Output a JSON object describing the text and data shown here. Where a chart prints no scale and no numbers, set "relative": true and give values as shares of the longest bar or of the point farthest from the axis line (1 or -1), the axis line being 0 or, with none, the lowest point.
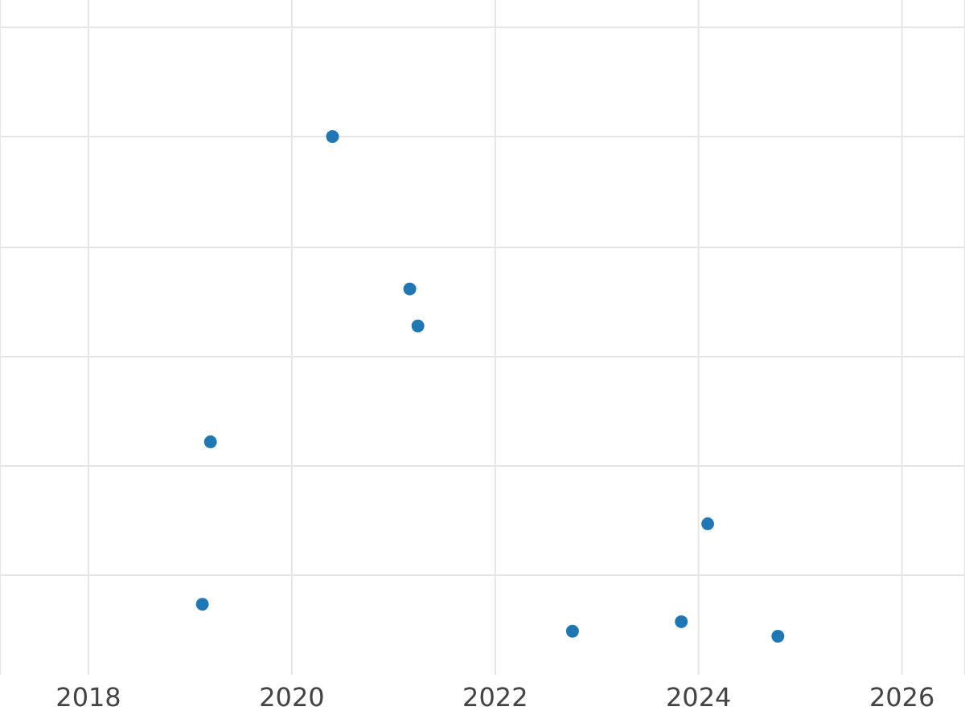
{
  "chart_data": {
    "type": "scatter",
    "relative": true,
    "x": [
      2019.12,
      2019.2,
      2020.4,
      2021.16,
      2021.24,
      2022.76,
      2023.83,
      2024.09,
      2024.78
    ],
    "series": [
      {
        "color": "#1f77b4",
        "values": [
          0.064,
          0.389,
          1,
          0.695,
          0.621,
          0.01,
          0.029,
          0.225,
          0
        ]
      }
    ],
    "xlim": [
      2017.13,
      2026.62
    ],
    "xticks": [
      2018,
      2020,
      2022,
      2024,
      2026
    ],
    "grid": true,
    "marker": "circle",
    "tick_labels": "x"
  }
}
